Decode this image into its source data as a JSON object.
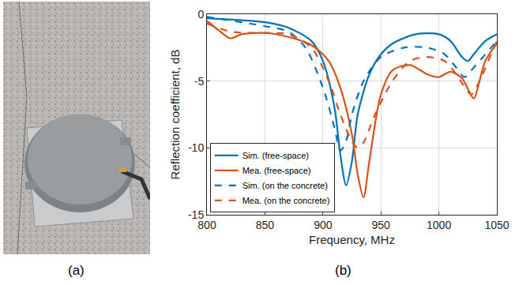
{
  "panels": {
    "a": "(a)",
    "b": "(b)"
  },
  "chart_data": {
    "type": "line",
    "x_label": "Frequency, MHz",
    "y_label": "Reflection coefficient, dB",
    "xlim": [
      800,
      1050
    ],
    "xticks": [
      800,
      850,
      900,
      950,
      1000,
      1050
    ],
    "ylim": [
      -15,
      0
    ],
    "yticks": [
      -15,
      -10,
      -5,
      0
    ],
    "grid": true,
    "legend": "lower left",
    "series": [
      {
        "name": "Sim. (free-space)",
        "color": "#0072bd",
        "line_style": "solid",
        "x": [
          800,
          850,
          870,
          890,
          900,
          910,
          915,
          920,
          925,
          930,
          940,
          950,
          960,
          980,
          1000,
          1010,
          1020,
          1025,
          1030,
          1040,
          1050
        ],
        "values": [
          -0.3,
          -0.6,
          -1.0,
          -2.0,
          -3.5,
          -7.0,
          -10.5,
          -12.8,
          -11.0,
          -7.5,
          -4.5,
          -3.0,
          -2.2,
          -1.5,
          -1.5,
          -2.0,
          -3.2,
          -3.5,
          -3.0,
          -2.0,
          -1.5
        ]
      },
      {
        "name": "Mea. (free-space)",
        "color": "#d95319",
        "line_style": "solid",
        "x": [
          800,
          810,
          820,
          830,
          850,
          870,
          890,
          905,
          915,
          925,
          930,
          935,
          940,
          950,
          960,
          975,
          990,
          1000,
          1010,
          1020,
          1030,
          1035,
          1040,
          1050
        ],
        "values": [
          -0.5,
          -1.2,
          -1.8,
          -1.5,
          -1.4,
          -1.7,
          -2.3,
          -3.5,
          -5.5,
          -9.0,
          -12.0,
          -13.7,
          -11.0,
          -6.0,
          -4.2,
          -3.8,
          -4.5,
          -4.7,
          -4.3,
          -4.8,
          -6.3,
          -5.0,
          -3.5,
          -2.2
        ]
      },
      {
        "name": "Sim. (on the concrete)",
        "color": "#0072bd",
        "line_style": "dashed",
        "x": [
          800,
          850,
          870,
          885,
          900,
          910,
          915,
          920,
          925,
          935,
          950,
          970,
          990,
          1005,
          1015,
          1022,
          1030,
          1040,
          1050
        ],
        "values": [
          -0.2,
          -0.9,
          -1.3,
          -2.5,
          -5.5,
          -8.5,
          -10.2,
          -9.5,
          -7.5,
          -5.0,
          -3.2,
          -2.5,
          -2.5,
          -3.0,
          -4.0,
          -4.7,
          -4.0,
          -3.0,
          -2.0
        ]
      },
      {
        "name": "Mea. (on the concrete)",
        "color": "#d95319",
        "line_style": "dashed",
        "x": [
          800,
          820,
          840,
          870,
          890,
          905,
          915,
          925,
          930,
          935,
          945,
          960,
          975,
          990,
          1005,
          1015,
          1028,
          1035,
          1045,
          1050
        ],
        "values": [
          -0.7,
          -1.3,
          -1.4,
          -1.5,
          -2.5,
          -5.0,
          -7.5,
          -9.5,
          -10.0,
          -9.6,
          -7.5,
          -5.0,
          -3.5,
          -3.2,
          -3.5,
          -4.5,
          -6.0,
          -5.0,
          -3.0,
          -2.0
        ]
      }
    ]
  }
}
